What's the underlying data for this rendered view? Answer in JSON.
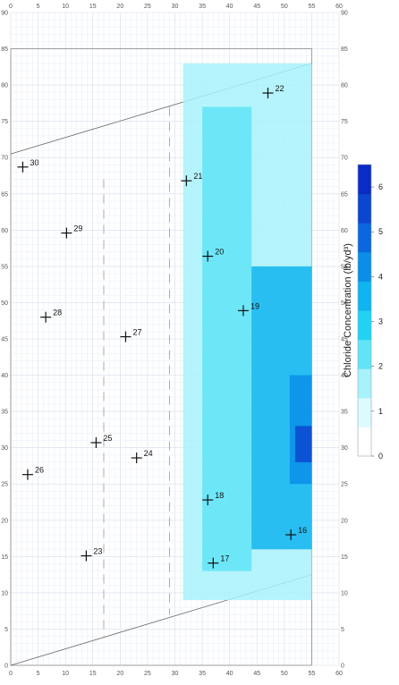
{
  "chart_data": {
    "type": "heatmap",
    "title": "",
    "xlabel": "",
    "ylabel": "",
    "xlim": [
      0,
      60
    ],
    "ylim": [
      0,
      90
    ],
    "x_ticks": [
      0,
      5,
      10,
      15,
      20,
      25,
      30,
      35,
      40,
      45,
      50,
      55,
      60
    ],
    "y_ticks": [
      0,
      5,
      10,
      15,
      20,
      25,
      30,
      35,
      40,
      45,
      50,
      55,
      60,
      65,
      70,
      75,
      80,
      85,
      90
    ],
    "grid": true,
    "colorbar": {
      "label": "Chloride Concentration (lb/yd³)",
      "min": 0,
      "max": 6.5,
      "ticks": [
        0,
        1,
        2,
        3,
        4,
        5,
        6
      ],
      "colors": [
        "#ffffff",
        "#dcfbff",
        "#a8f2fb",
        "#60e4f6",
        "#21d2f2",
        "#0fb4f0",
        "#0a8ee8",
        "#0a67de",
        "#0a46d0",
        "#0a2cc4"
      ]
    },
    "points": [
      {
        "label": "16",
        "x": 51.2,
        "y": 18.0
      },
      {
        "label": "17",
        "x": 37.0,
        "y": 14.1
      },
      {
        "label": "18",
        "x": 36.0,
        "y": 22.8
      },
      {
        "label": "19",
        "x": 42.5,
        "y": 48.9
      },
      {
        "label": "20",
        "x": 36.0,
        "y": 56.4
      },
      {
        "label": "21",
        "x": 32.1,
        "y": 66.8
      },
      {
        "label": "22",
        "x": 47.0,
        "y": 78.9
      },
      {
        "label": "23",
        "x": 13.8,
        "y": 15.1
      },
      {
        "label": "24",
        "x": 23.0,
        "y": 28.6
      },
      {
        "label": "25",
        "x": 15.6,
        "y": 30.7
      },
      {
        "label": "26",
        "x": 3.1,
        "y": 26.3
      },
      {
        "label": "27",
        "x": 21.0,
        "y": 45.3
      },
      {
        "label": "28",
        "x": 6.4,
        "y": 48.0
      },
      {
        "label": "29",
        "x": 10.2,
        "y": 59.6
      },
      {
        "label": "30",
        "x": 2.2,
        "y": 68.7
      }
    ],
    "concentration_zones": [
      {
        "level": 1.5,
        "x": [
          31.5,
          55
        ],
        "y": [
          9,
          83
        ]
      },
      {
        "level": 2.5,
        "x": [
          35,
          44
        ],
        "y": [
          13,
          77
        ]
      },
      {
        "level": 3.5,
        "x": [
          44,
          55
        ],
        "y": [
          16,
          55
        ]
      },
      {
        "level": 4.5,
        "x": [
          51,
          55
        ],
        "y": [
          25,
          40
        ]
      },
      {
        "level": 5.5,
        "x": [
          52,
          55
        ],
        "y": [
          28,
          33
        ]
      }
    ]
  }
}
